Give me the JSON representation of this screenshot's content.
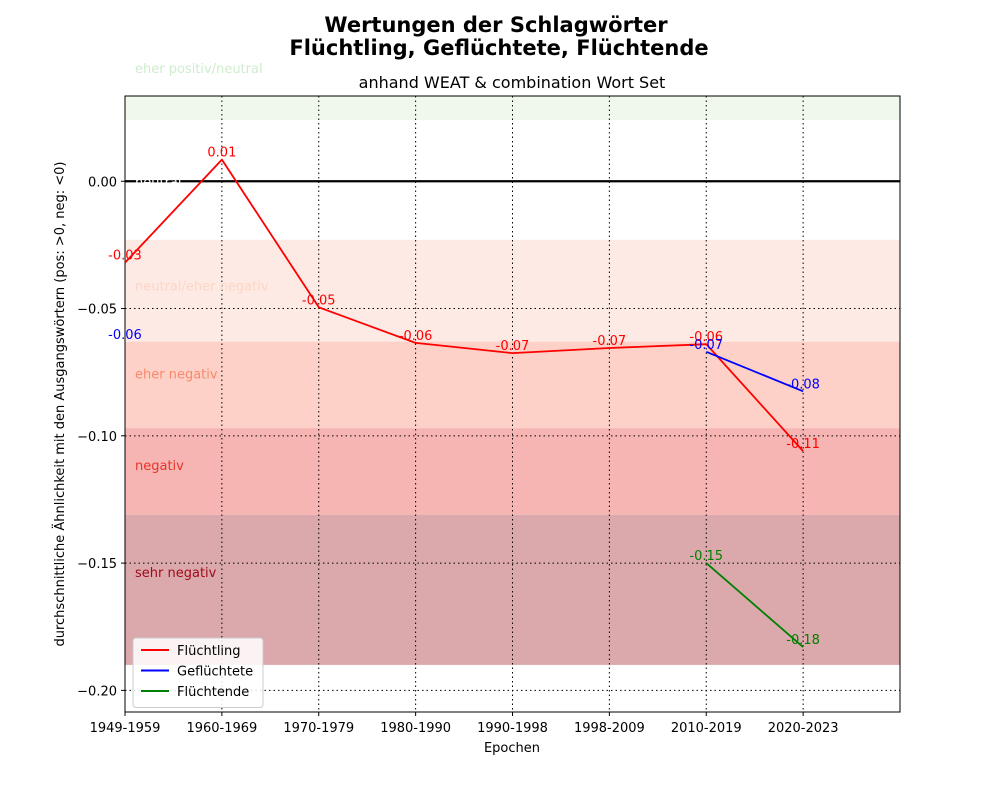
{
  "chart_data": {
    "type": "line",
    "title": "Wertungen der Schlagwörter",
    "title_line2": "Flüchtling, Geflüchtete, Flüchtende",
    "subtitle": "anhand WEAT & combination Wort Set",
    "xlabel": "Epochen",
    "ylabel": "durchschnittliche Ähnlichkeit mit den Ausgangswörtern (pos: >0, neg: <0)",
    "categories": [
      "1949-1959",
      "1960-1969",
      "1970-1979",
      "1980-1990",
      "1990-1998",
      "1998-2009",
      "2010-2019",
      "2020-2023"
    ],
    "x_range": [
      0,
      8
    ],
    "ylim": [
      -0.2085,
      0.0335
    ],
    "yticks": [
      0.0,
      -0.05,
      -0.1,
      -0.15,
      -0.2
    ],
    "ytick_labels": [
      "0.00",
      "−0.05",
      "−0.10",
      "−0.15",
      "−0.20"
    ],
    "grid": "dotted",
    "zero_line": true,
    "legend_position": "lower-left",
    "bands": [
      {
        "label": "eher positiv/neutral",
        "from": 0.024,
        "to": 0.0335,
        "color": "#f0f8ec",
        "label_color": "#cfeccf",
        "label_y": 0.0445
      },
      {
        "label": "neutral",
        "from": 0.0,
        "to": 0.0,
        "color": "none",
        "label_color": "#ffffff",
        "label_y": 0.0
      },
      {
        "label": "neutral/eher negativ",
        "from": -0.063,
        "to": -0.023,
        "color": "#feeae4",
        "label_color": "#fdd6c4",
        "label_y": -0.041
      },
      {
        "label": "eher negativ",
        "from": -0.097,
        "to": -0.063,
        "color": "#fdd1c7",
        "label_color": "#f9896a",
        "label_y": -0.0755
      },
      {
        "label": "negativ",
        "from": -0.131,
        "to": -0.097,
        "color": "#f6b4b3",
        "label_color": "#e8342a",
        "label_y": -0.1115
      },
      {
        "label": "sehr negativ",
        "from": -0.19,
        "to": -0.131,
        "color": "#dba9ac",
        "label_color": "#9e0a1a",
        "label_y": -0.1535
      }
    ],
    "series": [
      {
        "name": "Flüchtling",
        "color": "#ff0000",
        "x": [
          0,
          1,
          2,
          3,
          4,
          5,
          6,
          7
        ],
        "values": [
          -0.032,
          0.0085,
          -0.0495,
          -0.0635,
          -0.0675,
          -0.0655,
          -0.064,
          -0.106
        ],
        "labels": [
          "-0.03",
          "0.01",
          "-0.05",
          "-0.06",
          "-0.07",
          "-0.07",
          "-0.06",
          "-0.11"
        ]
      },
      {
        "name": "Geflüchtete",
        "color": "#0000ff",
        "x": [
          6,
          7
        ],
        "values": [
          -0.067,
          -0.0825
        ],
        "labels": [
          "-0.07",
          "-0.08"
        ],
        "extra_labels": [
          {
            "x": 0,
            "y": -0.06,
            "text": "-0.06"
          }
        ]
      },
      {
        "name": "Flüchtende",
        "color": "#008000",
        "x": [
          6,
          7
        ],
        "values": [
          -0.15,
          -0.183
        ],
        "labels": [
          "-0.15",
          "-0.18"
        ]
      }
    ]
  }
}
